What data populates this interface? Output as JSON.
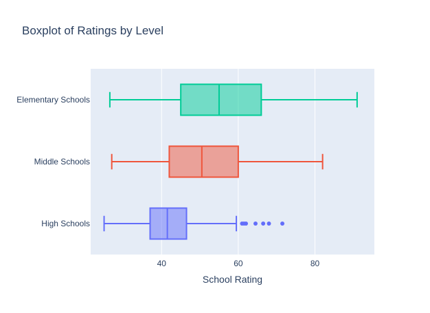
{
  "chart_data": {
    "type": "box",
    "title": "Boxplot of Ratings by Level",
    "xlabel": "School Rating",
    "ylabel": "",
    "xlim": [
      21.5,
      95.5
    ],
    "x_ticks": [
      40,
      60,
      80
    ],
    "grid": true,
    "legend": "none",
    "orientation": "horizontal",
    "categories": [
      "High Schools",
      "Middle Schools",
      "Elementary Schools"
    ],
    "series": [
      {
        "category": "High Schools",
        "color": "#636EFA",
        "min": 25,
        "q1": 37,
        "median": 41.5,
        "q3": 46.5,
        "max": 59.5,
        "outliers": [
          61,
          61.5,
          62,
          64.5,
          66.5,
          68,
          71.5
        ]
      },
      {
        "category": "Middle Schools",
        "color": "#EF553B",
        "min": 27,
        "q1": 42,
        "median": 50.5,
        "q3": 60,
        "max": 82,
        "outliers": []
      },
      {
        "category": "Elementary Schools",
        "color": "#00CC96",
        "min": 26.5,
        "q1": 45,
        "median": 55,
        "q3": 66,
        "max": 91,
        "outliers": []
      }
    ]
  }
}
